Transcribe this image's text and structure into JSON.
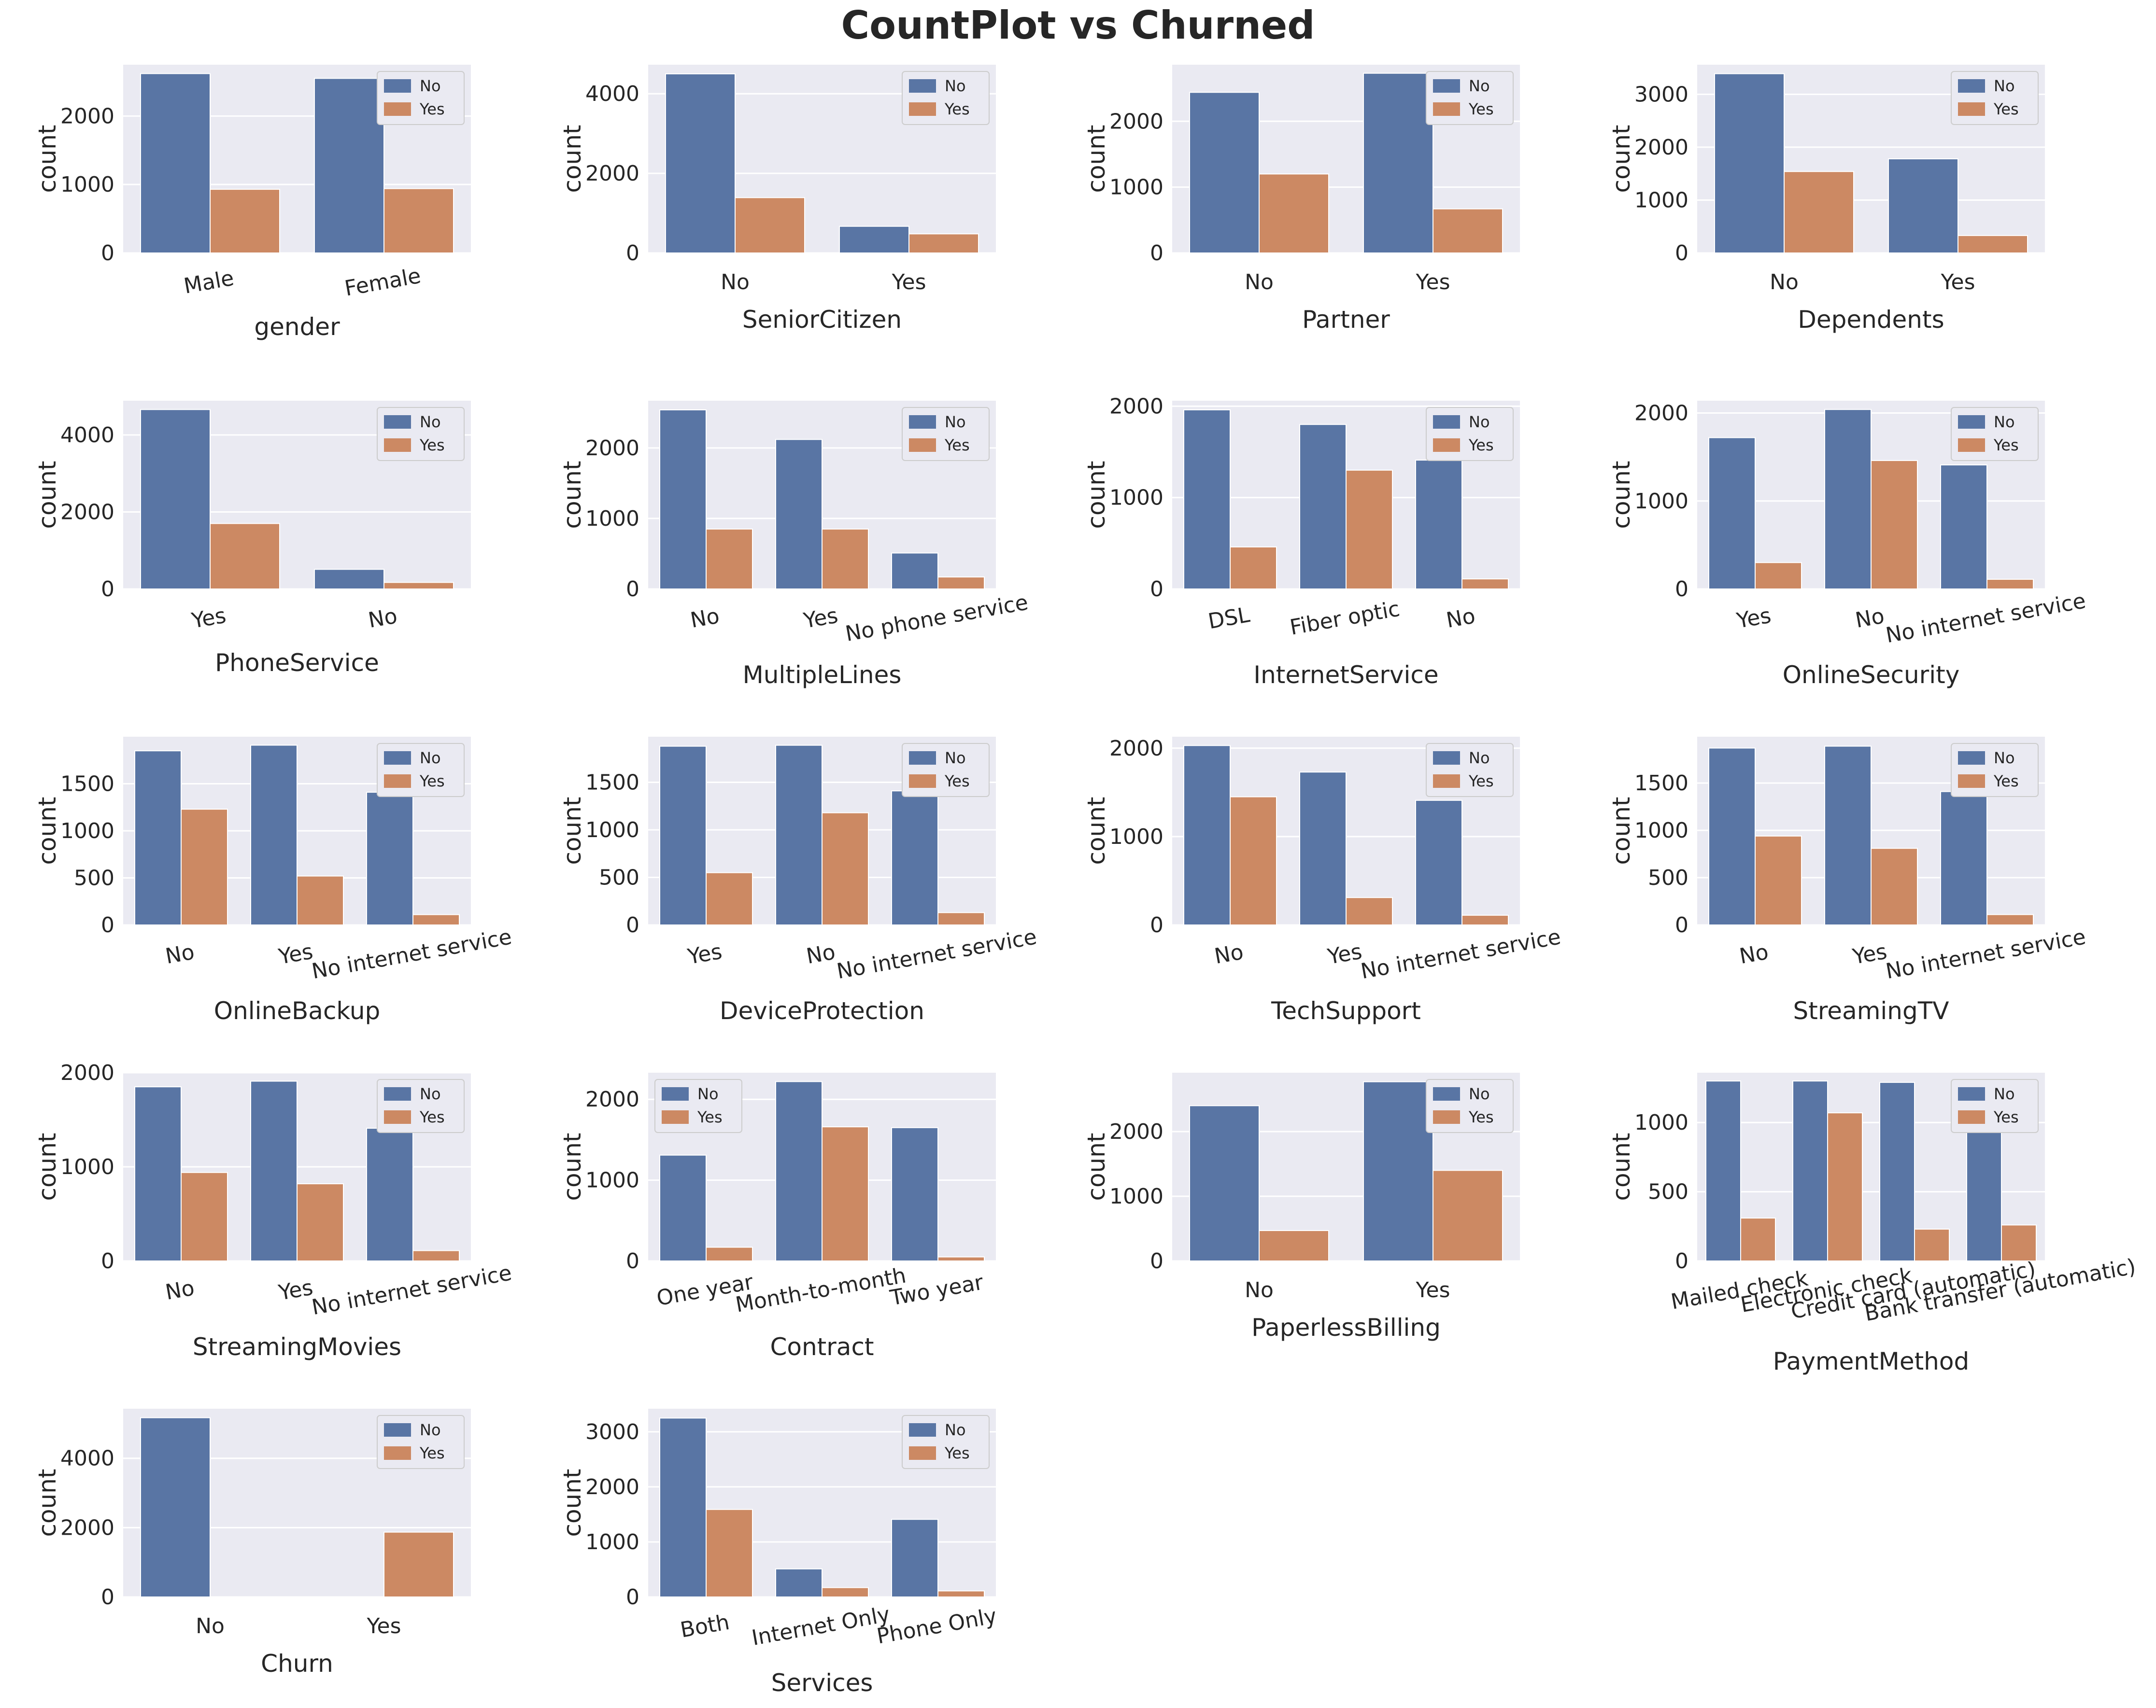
{
  "title": "CountPlot vs Churned",
  "colors": {
    "No": "#5975a4",
    "Yes": "#cc8963",
    "background": "#eaeaf2",
    "grid": "#ffffff"
  },
  "chart_data": [
    {
      "type": "bar",
      "xlabel": "gender",
      "ylabel": "count",
      "categories": [
        "Male",
        "Female"
      ],
      "series": [
        {
          "name": "No",
          "values": [
            2620,
            2550
          ]
        },
        {
          "name": "Yes",
          "values": [
            930,
            940
          ]
        }
      ],
      "yticks": [
        0,
        1000,
        2000
      ],
      "ylim": [
        0,
        2750
      ],
      "legend": "top-right",
      "rotate": true
    },
    {
      "type": "bar",
      "xlabel": "SeniorCitizen",
      "ylabel": "count",
      "categories": [
        "No",
        "Yes"
      ],
      "series": [
        {
          "name": "No",
          "values": [
            4500,
            670
          ]
        },
        {
          "name": "Yes",
          "values": [
            1390,
            480
          ]
        }
      ],
      "yticks": [
        0,
        2000,
        4000
      ],
      "ylim": [
        0,
        4730
      ],
      "legend": "top-right",
      "rotate": false
    },
    {
      "type": "bar",
      "xlabel": "Partner",
      "ylabel": "count",
      "categories": [
        "No",
        "Yes"
      ],
      "series": [
        {
          "name": "No",
          "values": [
            2440,
            2730
          ]
        },
        {
          "name": "Yes",
          "values": [
            1200,
            670
          ]
        }
      ],
      "yticks": [
        0,
        1000,
        2000
      ],
      "ylim": [
        0,
        2860
      ],
      "legend": "top-right",
      "rotate": false
    },
    {
      "type": "bar",
      "xlabel": "Dependents",
      "ylabel": "count",
      "categories": [
        "No",
        "Yes"
      ],
      "series": [
        {
          "name": "No",
          "values": [
            3390,
            1780
          ]
        },
        {
          "name": "Yes",
          "values": [
            1540,
            330
          ]
        }
      ],
      "yticks": [
        0,
        1000,
        2000,
        3000
      ],
      "ylim": [
        0,
        3560
      ],
      "legend": "top-right",
      "rotate": false
    },
    {
      "type": "bar",
      "xlabel": "PhoneService",
      "ylabel": "count",
      "categories": [
        "Yes",
        "No"
      ],
      "series": [
        {
          "name": "No",
          "values": [
            4660,
            510
          ]
        },
        {
          "name": "Yes",
          "values": [
            1700,
            170
          ]
        }
      ],
      "yticks": [
        0,
        2000,
        4000
      ],
      "ylim": [
        0,
        4890
      ],
      "legend": "top-right",
      "rotate": true
    },
    {
      "type": "bar",
      "xlabel": "MultipleLines",
      "ylabel": "count",
      "categories": [
        "No",
        "Yes",
        "No phone service"
      ],
      "series": [
        {
          "name": "No",
          "values": [
            2540,
            2120,
            510
          ]
        },
        {
          "name": "Yes",
          "values": [
            850,
            850,
            170
          ]
        }
      ],
      "yticks": [
        0,
        1000,
        2000
      ],
      "ylim": [
        0,
        2670
      ],
      "legend": "top-right",
      "rotate": true
    },
    {
      "type": "bar",
      "xlabel": "InternetService",
      "ylabel": "count",
      "categories": [
        "DSL",
        "Fiber optic",
        "No"
      ],
      "series": [
        {
          "name": "No",
          "values": [
            1960,
            1800,
            1410
          ]
        },
        {
          "name": "Yes",
          "values": [
            460,
            1300,
            110
          ]
        }
      ],
      "yticks": [
        0,
        1000,
        2000
      ],
      "ylim": [
        0,
        2060
      ],
      "legend": "top-right",
      "rotate": true
    },
    {
      "type": "bar",
      "xlabel": "OnlineSecurity",
      "ylabel": "count",
      "categories": [
        "Yes",
        "No",
        "No internet service"
      ],
      "series": [
        {
          "name": "No",
          "values": [
            1720,
            2040,
            1410
          ]
        },
        {
          "name": "Yes",
          "values": [
            300,
            1460,
            110
          ]
        }
      ],
      "yticks": [
        0,
        1000,
        2000
      ],
      "ylim": [
        0,
        2140
      ],
      "legend": "top-right",
      "rotate": true
    },
    {
      "type": "bar",
      "xlabel": "OnlineBackup",
      "ylabel": "count",
      "categories": [
        "No",
        "Yes",
        "No internet service"
      ],
      "series": [
        {
          "name": "No",
          "values": [
            1850,
            1910,
            1410
          ]
        },
        {
          "name": "Yes",
          "values": [
            1230,
            520,
            110
          ]
        }
      ],
      "yticks": [
        0,
        500,
        1000,
        1500
      ],
      "ylim": [
        0,
        2000
      ],
      "legend": "top-right",
      "rotate": true
    },
    {
      "type": "bar",
      "xlabel": "DeviceProtection",
      "ylabel": "count",
      "categories": [
        "Yes",
        "No",
        "No internet service"
      ],
      "series": [
        {
          "name": "No",
          "values": [
            1880,
            1890,
            1410
          ]
        },
        {
          "name": "Yes",
          "values": [
            550,
            1180,
            130
          ]
        }
      ],
      "yticks": [
        0,
        500,
        1000,
        1500
      ],
      "ylim": [
        0,
        1980
      ],
      "legend": "top-right",
      "rotate": true
    },
    {
      "type": "bar",
      "xlabel": "TechSupport",
      "ylabel": "count",
      "categories": [
        "No",
        "Yes",
        "No internet service"
      ],
      "series": [
        {
          "name": "No",
          "values": [
            2030,
            1730,
            1410
          ]
        },
        {
          "name": "Yes",
          "values": [
            1450,
            310,
            110
          ]
        }
      ],
      "yticks": [
        0,
        1000,
        2000
      ],
      "ylim": [
        0,
        2130
      ],
      "legend": "top-right",
      "rotate": true
    },
    {
      "type": "bar",
      "xlabel": "StreamingTV",
      "ylabel": "count",
      "categories": [
        "No",
        "Yes",
        "No internet service"
      ],
      "series": [
        {
          "name": "No",
          "values": [
            1870,
            1890,
            1410
          ]
        },
        {
          "name": "Yes",
          "values": [
            940,
            810,
            110
          ]
        }
      ],
      "yticks": [
        0,
        500,
        1000,
        1500
      ],
      "ylim": [
        0,
        1990
      ],
      "legend": "top-right",
      "rotate": true
    },
    {
      "type": "bar",
      "xlabel": "StreamingMovies",
      "ylabel": "count",
      "categories": [
        "No",
        "Yes",
        "No internet service"
      ],
      "series": [
        {
          "name": "No",
          "values": [
            1850,
            1910,
            1410
          ]
        },
        {
          "name": "Yes",
          "values": [
            940,
            820,
            110
          ]
        }
      ],
      "yticks": [
        0,
        1000,
        2000
      ],
      "ylim": [
        0,
        2000
      ],
      "legend": "top-right",
      "rotate": true
    },
    {
      "type": "bar",
      "xlabel": "Contract",
      "ylabel": "count",
      "categories": [
        "One year",
        "Month-to-month",
        "Two year"
      ],
      "series": [
        {
          "name": "No",
          "values": [
            1310,
            2220,
            1650
          ]
        },
        {
          "name": "Yes",
          "values": [
            170,
            1660,
            50
          ]
        }
      ],
      "yticks": [
        0,
        1000,
        2000
      ],
      "ylim": [
        0,
        2330
      ],
      "legend": "top-left",
      "rotate": true
    },
    {
      "type": "bar",
      "xlabel": "PaperlessBilling",
      "ylabel": "count",
      "categories": [
        "No",
        "Yes"
      ],
      "series": [
        {
          "name": "No",
          "values": [
            2400,
            2770
          ]
        },
        {
          "name": "Yes",
          "values": [
            470,
            1400
          ]
        }
      ],
      "yticks": [
        0,
        1000,
        2000
      ],
      "ylim": [
        0,
        2910
      ],
      "legend": "top-right",
      "rotate": false
    },
    {
      "type": "bar",
      "xlabel": "PaymentMethod",
      "ylabel": "count",
      "categories": [
        "Mailed check",
        "Electronic check",
        "Credit card (automatic)",
        "Bank transfer (automatic)"
      ],
      "series": [
        {
          "name": "No",
          "values": [
            1300,
            1300,
            1290,
            1290
          ]
        },
        {
          "name": "Yes",
          "values": [
            310,
            1070,
            230,
            260
          ]
        }
      ],
      "yticks": [
        0,
        500,
        1000
      ],
      "ylim": [
        0,
        1360
      ],
      "legend": "top-right",
      "rotate": true
    },
    {
      "type": "bar",
      "xlabel": "Churn",
      "ylabel": "count",
      "categories": [
        "No",
        "Yes"
      ],
      "series": [
        {
          "name": "No",
          "values": [
            5170,
            0
          ]
        },
        {
          "name": "Yes",
          "values": [
            0,
            1870
          ]
        }
      ],
      "yticks": [
        0,
        2000,
        4000
      ],
      "ylim": [
        0,
        5430
      ],
      "legend": "top-right",
      "rotate": false
    },
    {
      "type": "bar",
      "xlabel": "Services",
      "ylabel": "count",
      "categories": [
        "Both",
        "Internet Only",
        "Phone Only"
      ],
      "series": [
        {
          "name": "No",
          "values": [
            3250,
            510,
            1410
          ]
        },
        {
          "name": "Yes",
          "values": [
            1590,
            170,
            110
          ]
        }
      ],
      "yticks": [
        0,
        1000,
        2000,
        3000
      ],
      "ylim": [
        0,
        3420
      ],
      "legend": "top-right",
      "rotate": true
    }
  ]
}
